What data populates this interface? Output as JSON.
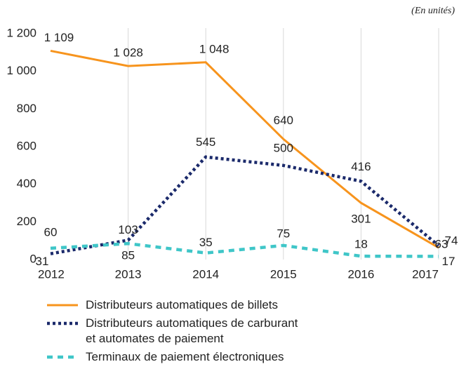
{
  "chart_data": {
    "type": "line",
    "annotation": "(En unités)",
    "categories": [
      "2012",
      "2013",
      "2014",
      "2015",
      "2016",
      "2017"
    ],
    "series": [
      {
        "name": "Distributeurs automatiques de billets",
        "color": "#f7941d",
        "dash": "solid",
        "values": [
          1109,
          1028,
          1048,
          640,
          301,
          63
        ],
        "value_labels": [
          "1 109",
          "1 028",
          "1 048",
          "640",
          "301",
          "63"
        ]
      },
      {
        "name": "Distributeurs automatiques de carburant\net automates de paiement",
        "color": "#1b2a6b",
        "dash": "dotted",
        "values": [
          31,
          103,
          545,
          500,
          416,
          74
        ]
      },
      {
        "name": "Terminaux de paiement électroniques",
        "color": "#3fc6c8",
        "dash": "dashed",
        "values": [
          60,
          85,
          35,
          75,
          18,
          17
        ]
      }
    ],
    "ylim": [
      0,
      1200
    ],
    "yticks": [
      0,
      200,
      400,
      600,
      800,
      {
        "value": 1000,
        "label": "1 000"
      },
      {
        "value": 1200,
        "label": "1 200"
      }
    ],
    "grid": "x"
  }
}
